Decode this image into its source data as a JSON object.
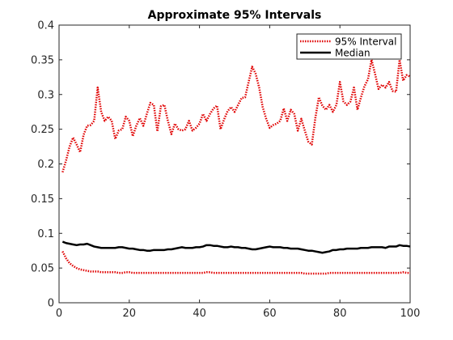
{
  "chart_data": {
    "type": "line",
    "title": "Approximate 95% Intervals",
    "xlabel": "",
    "ylabel": "",
    "xlim": [
      0,
      100
    ],
    "ylim": [
      0,
      0.4
    ],
    "xticks": [
      "0",
      "20",
      "40",
      "60",
      "80",
      "100"
    ],
    "yticks": [
      "0",
      "0.05",
      "0.1",
      "0.15",
      "0.2",
      "0.25",
      "0.3",
      "0.35",
      "0.4"
    ],
    "grid": false,
    "legend_position": "top-right",
    "series": [
      {
        "name": "95% Interval",
        "style": "dotted",
        "color": "#e00000",
        "x": [
          1,
          2,
          3,
          4,
          5,
          6,
          7,
          8,
          9,
          10,
          11,
          12,
          13,
          14,
          15,
          16,
          17,
          18,
          19,
          20,
          21,
          22,
          23,
          24,
          25,
          26,
          27,
          28,
          29,
          30,
          31,
          32,
          33,
          34,
          35,
          36,
          37,
          38,
          39,
          40,
          41,
          42,
          43,
          44,
          45,
          46,
          47,
          48,
          49,
          50,
          51,
          52,
          53,
          54,
          55,
          56,
          57,
          58,
          59,
          60,
          61,
          62,
          63,
          64,
          65,
          66,
          67,
          68,
          69,
          70,
          71,
          72,
          73,
          74,
          75,
          76,
          77,
          78,
          79,
          80,
          81,
          82,
          83,
          84,
          85,
          86,
          87,
          88,
          89,
          90,
          91,
          92,
          93,
          94,
          95,
          96,
          97,
          98,
          99,
          100
        ],
        "values": [
          0.188,
          0.205,
          0.225,
          0.238,
          0.228,
          0.217,
          0.242,
          0.255,
          0.256,
          0.262,
          0.31,
          0.275,
          0.262,
          0.268,
          0.262,
          0.236,
          0.248,
          0.25,
          0.268,
          0.262,
          0.24,
          0.255,
          0.266,
          0.255,
          0.272,
          0.288,
          0.285,
          0.247,
          0.283,
          0.285,
          0.262,
          0.243,
          0.258,
          0.25,
          0.248,
          0.25,
          0.262,
          0.248,
          0.252,
          0.258,
          0.272,
          0.262,
          0.272,
          0.28,
          0.284,
          0.25,
          0.264,
          0.276,
          0.282,
          0.275,
          0.285,
          0.295,
          0.296,
          0.318,
          0.34,
          0.33,
          0.31,
          0.282,
          0.265,
          0.252,
          0.256,
          0.258,
          0.262,
          0.28,
          0.262,
          0.278,
          0.272,
          0.248,
          0.265,
          0.248,
          0.232,
          0.228,
          0.266,
          0.296,
          0.284,
          0.278,
          0.285,
          0.275,
          0.285,
          0.318,
          0.29,
          0.285,
          0.29,
          0.31,
          0.278,
          0.296,
          0.312,
          0.322,
          0.35,
          0.33,
          0.308,
          0.314,
          0.31,
          0.318,
          0.305,
          0.304,
          0.35,
          0.32,
          0.328,
          0.326
        ]
      },
      {
        "name": "",
        "style": "dotted",
        "color": "#e00000",
        "x": [
          1,
          2,
          3,
          4,
          5,
          6,
          7,
          8,
          9,
          10,
          11,
          12,
          13,
          14,
          15,
          16,
          17,
          18,
          19,
          20,
          21,
          22,
          23,
          24,
          25,
          26,
          27,
          28,
          29,
          30,
          31,
          32,
          33,
          34,
          35,
          36,
          37,
          38,
          39,
          40,
          41,
          42,
          43,
          44,
          45,
          46,
          47,
          48,
          49,
          50,
          51,
          52,
          53,
          54,
          55,
          56,
          57,
          58,
          59,
          60,
          61,
          62,
          63,
          64,
          65,
          66,
          67,
          68,
          69,
          70,
          71,
          72,
          73,
          74,
          75,
          76,
          77,
          78,
          79,
          80,
          81,
          82,
          83,
          84,
          85,
          86,
          87,
          88,
          89,
          90,
          91,
          92,
          93,
          94,
          95,
          96,
          97,
          98,
          99,
          100
        ],
        "values": [
          0.074,
          0.064,
          0.057,
          0.053,
          0.05,
          0.048,
          0.047,
          0.046,
          0.045,
          0.045,
          0.045,
          0.044,
          0.044,
          0.044,
          0.044,
          0.044,
          0.043,
          0.043,
          0.044,
          0.044,
          0.043,
          0.043,
          0.043,
          0.043,
          0.043,
          0.043,
          0.043,
          0.043,
          0.043,
          0.043,
          0.043,
          0.043,
          0.043,
          0.043,
          0.043,
          0.043,
          0.043,
          0.043,
          0.043,
          0.043,
          0.043,
          0.044,
          0.044,
          0.043,
          0.043,
          0.043,
          0.043,
          0.043,
          0.043,
          0.043,
          0.043,
          0.043,
          0.043,
          0.043,
          0.043,
          0.043,
          0.043,
          0.043,
          0.043,
          0.043,
          0.043,
          0.043,
          0.043,
          0.043,
          0.043,
          0.043,
          0.043,
          0.043,
          0.043,
          0.042,
          0.042,
          0.042,
          0.042,
          0.042,
          0.042,
          0.042,
          0.043,
          0.043,
          0.043,
          0.043,
          0.043,
          0.043,
          0.043,
          0.043,
          0.043,
          0.043,
          0.043,
          0.043,
          0.043,
          0.043,
          0.043,
          0.043,
          0.043,
          0.043,
          0.043,
          0.043,
          0.043,
          0.044,
          0.043,
          0.043
        ]
      },
      {
        "name": "Median",
        "style": "solid",
        "color": "#000000",
        "x": [
          1,
          2,
          3,
          4,
          5,
          6,
          7,
          8,
          9,
          10,
          11,
          12,
          13,
          14,
          15,
          16,
          17,
          18,
          19,
          20,
          21,
          22,
          23,
          24,
          25,
          26,
          27,
          28,
          29,
          30,
          31,
          32,
          33,
          34,
          35,
          36,
          37,
          38,
          39,
          40,
          41,
          42,
          43,
          44,
          45,
          46,
          47,
          48,
          49,
          50,
          51,
          52,
          53,
          54,
          55,
          56,
          57,
          58,
          59,
          60,
          61,
          62,
          63,
          64,
          65,
          66,
          67,
          68,
          69,
          70,
          71,
          72,
          73,
          74,
          75,
          76,
          77,
          78,
          79,
          80,
          81,
          82,
          83,
          84,
          85,
          86,
          87,
          88,
          89,
          90,
          91,
          92,
          93,
          94,
          95,
          96,
          97,
          98,
          99,
          100
        ],
        "values": [
          0.088,
          0.086,
          0.085,
          0.084,
          0.083,
          0.084,
          0.084,
          0.085,
          0.083,
          0.081,
          0.08,
          0.079,
          0.079,
          0.079,
          0.079,
          0.079,
          0.08,
          0.08,
          0.079,
          0.078,
          0.078,
          0.077,
          0.076,
          0.076,
          0.075,
          0.075,
          0.076,
          0.076,
          0.076,
          0.076,
          0.077,
          0.077,
          0.078,
          0.079,
          0.08,
          0.079,
          0.079,
          0.079,
          0.08,
          0.08,
          0.081,
          0.083,
          0.083,
          0.082,
          0.082,
          0.081,
          0.08,
          0.08,
          0.081,
          0.08,
          0.08,
          0.079,
          0.079,
          0.078,
          0.077,
          0.077,
          0.078,
          0.079,
          0.08,
          0.081,
          0.08,
          0.08,
          0.08,
          0.079,
          0.079,
          0.078,
          0.078,
          0.078,
          0.077,
          0.076,
          0.075,
          0.075,
          0.074,
          0.073,
          0.072,
          0.073,
          0.074,
          0.076,
          0.076,
          0.077,
          0.077,
          0.078,
          0.078,
          0.078,
          0.078,
          0.079,
          0.079,
          0.079,
          0.08,
          0.08,
          0.08,
          0.08,
          0.079,
          0.081,
          0.081,
          0.081,
          0.083,
          0.082,
          0.082,
          0.081
        ]
      }
    ]
  }
}
